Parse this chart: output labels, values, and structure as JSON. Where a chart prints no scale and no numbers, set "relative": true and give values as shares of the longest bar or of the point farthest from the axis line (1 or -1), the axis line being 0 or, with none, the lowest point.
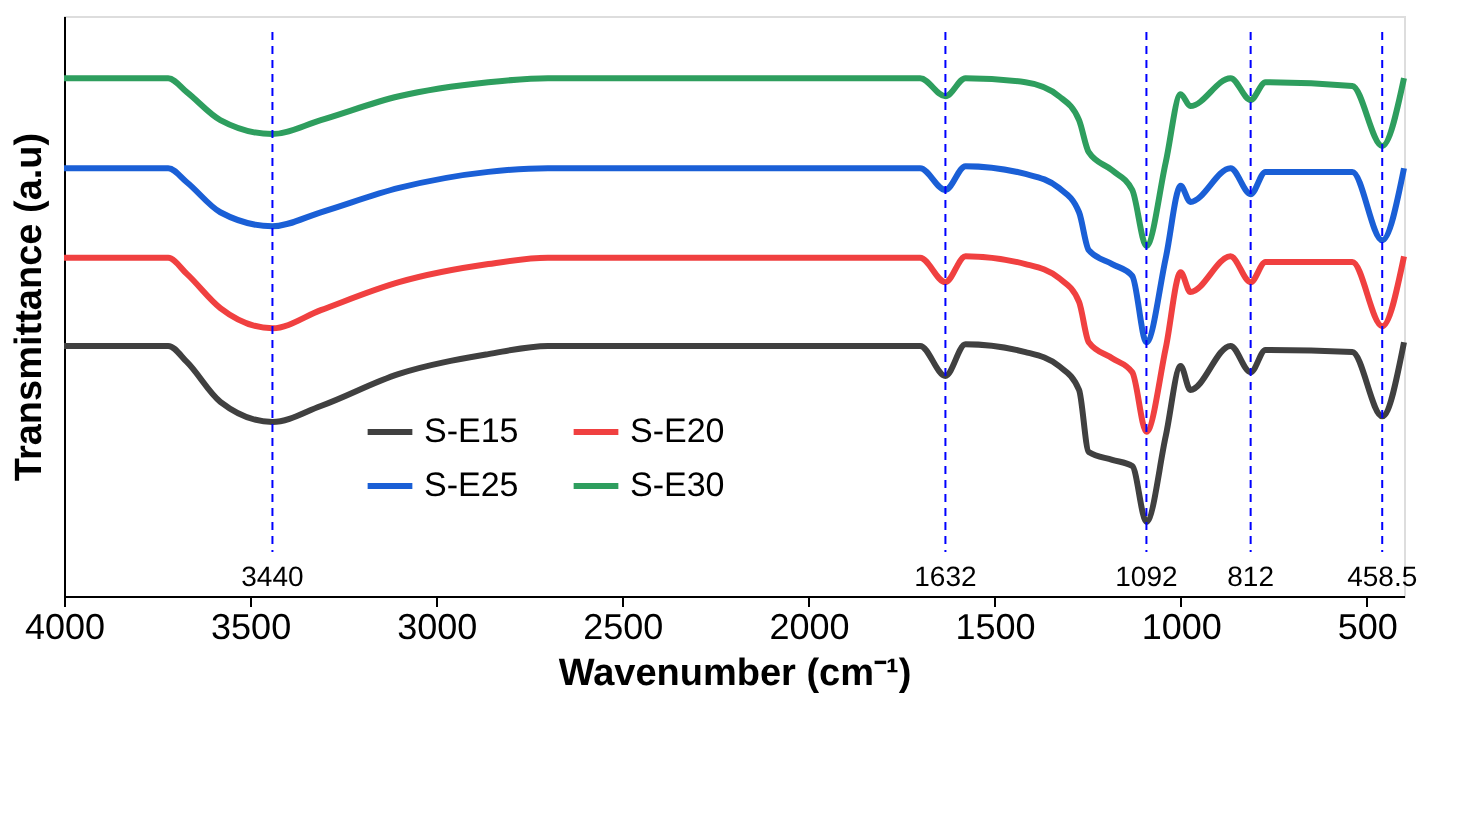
{
  "chart_data": {
    "type": "line",
    "relative": true,
    "xlabel": "Wavenumber (cm⁻¹)",
    "ylabel": "Transmittance (a.u)",
    "x": [
      4000,
      3720,
      3670,
      3580,
      3440,
      3310,
      3100,
      2860,
      2700,
      2000,
      1700,
      1632,
      1578,
      1417,
      1327,
      1273,
      1247,
      1184,
      1130,
      1092,
      1040,
      1000,
      974,
      866,
      812,
      772,
      539,
      458.5,
      400
    ],
    "xlim": [
      4000,
      400
    ],
    "xticks": [
      4000,
      3500,
      3000,
      2500,
      2000,
      1500,
      1000,
      500
    ],
    "series": [
      {
        "name": "S-E15",
        "color": "#404040",
        "values": [
          0.483,
          0.483,
          0.452,
          0.375,
          0.336,
          0.367,
          0.429,
          0.467,
          0.483,
          0.483,
          0.483,
          0.425,
          0.486,
          0.471,
          0.444,
          0.398,
          0.278,
          0.263,
          0.251,
          0.143,
          0.309,
          0.444,
          0.398,
          0.483,
          0.432,
          0.475,
          0.471,
          0.347,
          0.49
        ]
      },
      {
        "name": "S-E20",
        "color": "#f04040",
        "values": [
          0.653,
          0.653,
          0.622,
          0.556,
          0.517,
          0.552,
          0.606,
          0.641,
          0.653,
          0.653,
          0.653,
          0.606,
          0.656,
          0.641,
          0.614,
          0.568,
          0.49,
          0.459,
          0.432,
          0.317,
          0.479,
          0.625,
          0.587,
          0.656,
          0.606,
          0.645,
          0.645,
          0.521,
          0.656
        ]
      },
      {
        "name": "S-E25",
        "color": "#1a5fd6",
        "values": [
          0.826,
          0.826,
          0.799,
          0.741,
          0.714,
          0.741,
          0.788,
          0.819,
          0.826,
          0.826,
          0.826,
          0.784,
          0.83,
          0.815,
          0.788,
          0.741,
          0.668,
          0.641,
          0.618,
          0.49,
          0.653,
          0.792,
          0.761,
          0.826,
          0.776,
          0.819,
          0.819,
          0.687,
          0.826
        ]
      },
      {
        "name": "S-E30",
        "color": "#2e9e5e",
        "values": [
          1.0,
          1.0,
          0.973,
          0.919,
          0.892,
          0.919,
          0.965,
          0.992,
          1.0,
          1.0,
          1.0,
          0.965,
          1.0,
          0.992,
          0.965,
          0.919,
          0.857,
          0.822,
          0.784,
          0.676,
          0.838,
          0.969,
          0.946,
          1.0,
          0.958,
          0.992,
          0.985,
          0.869,
          1.0
        ]
      }
    ],
    "ref_lines": [
      {
        "axis": "x",
        "value": 3440,
        "label": "3440",
        "color": "#0000ff",
        "line_style": "dashed"
      },
      {
        "axis": "x",
        "value": 1632,
        "label": "1632",
        "color": "#0000ff",
        "line_style": "dashed"
      },
      {
        "axis": "x",
        "value": 1092,
        "label": "1092",
        "color": "#0000ff",
        "line_style": "dashed"
      },
      {
        "axis": "x",
        "value": 812,
        "label": "812",
        "color": "#0000ff",
        "line_style": "dashed"
      },
      {
        "axis": "x",
        "value": 458.5,
        "label": "458.5",
        "color": "#0000ff",
        "line_style": "dashed"
      }
    ],
    "legend": "bottom",
    "grid": false,
    "marker": "none",
    "line_style": "solid"
  }
}
